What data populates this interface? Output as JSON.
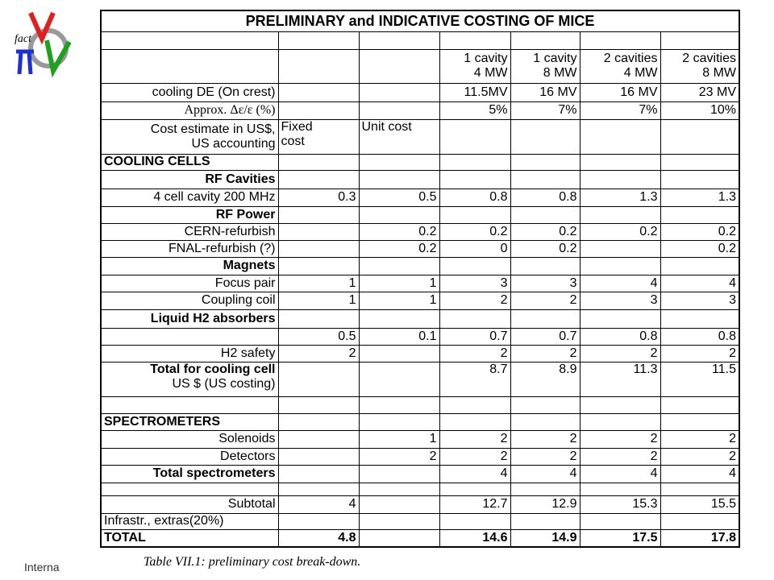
{
  "logo_text": "fact",
  "footer": "Interna",
  "table": {
    "title": "PRELIMINARY and INDICATIVE COSTING OF MICE",
    "caption": "Table VII.1: preliminary cost break-down.",
    "rows": [
      {
        "cells": [
          null,
          null,
          null,
          null,
          null,
          null,
          null
        ]
      },
      {
        "cells": [
          null,
          null,
          null,
          "1 cavity\n4 MW",
          "1 cavity\n8 MW",
          "2 cavities\n4 MW",
          "2 cavities\n8 MW"
        ]
      },
      {
        "cells": [
          "cooling DE (On crest)",
          null,
          null,
          "11.5MV",
          "16 MV",
          "16 MV",
          "23 MV"
        ]
      },
      {
        "cells": [
          "Approx. Δε/ε (%)",
          null,
          null,
          "5%",
          "7%",
          "7%",
          "10%"
        ]
      },
      {
        "cells": [
          "Cost estimate in US$,\nUS accounting",
          "Fixed\ncost",
          "Unit cost",
          null,
          null,
          null,
          null
        ]
      },
      {
        "cells": [
          "COOLING CELLS",
          null,
          null,
          null,
          null,
          null,
          null
        ]
      },
      {
        "cells": [
          "RF Cavities",
          null,
          null,
          null,
          null,
          null,
          null
        ]
      },
      {
        "cells": [
          "4 cell cavity 200 MHz",
          0.3,
          0.5,
          0.8,
          0.8,
          1.3,
          1.3
        ]
      },
      {
        "cells": [
          "RF Power",
          null,
          null,
          null,
          null,
          null,
          null
        ]
      },
      {
        "cells": [
          "CERN-refurbish",
          null,
          0.2,
          0.2,
          0.2,
          0.2,
          0.2
        ]
      },
      {
        "cells": [
          "FNAL-refurbish (?)",
          null,
          0.2,
          0,
          0.2,
          null,
          0.2
        ]
      },
      {
        "cells": [
          "Magnets",
          null,
          null,
          null,
          null,
          null,
          null
        ]
      },
      {
        "cells": [
          "Focus pair",
          1,
          1,
          3,
          3,
          4,
          4
        ]
      },
      {
        "cells": [
          "Coupling  coil",
          1,
          1,
          2,
          2,
          3,
          3
        ]
      },
      {
        "cells": [
          "Liquid H2 absorbers",
          null,
          null,
          null,
          null,
          null,
          null
        ]
      },
      {
        "cells": [
          null,
          0.5,
          0.1,
          0.7,
          0.7,
          0.8,
          0.8
        ]
      },
      {
        "cells": [
          "H2 safety",
          2,
          null,
          2,
          2,
          2,
          2
        ]
      },
      {
        "cells": [
          "Total for cooling cell",
          null,
          null,
          8.7,
          8.9,
          11.3,
          11.5
        ],
        "note": "US $ (US costing)"
      },
      {
        "cells": [
          null,
          null,
          null,
          null,
          null,
          null,
          null
        ]
      },
      {
        "cells": [
          "SPECTROMETERS",
          null,
          null,
          null,
          null,
          null,
          null
        ]
      },
      {
        "cells": [
          "Solenoids",
          null,
          1,
          2,
          2,
          2,
          2
        ]
      },
      {
        "cells": [
          "Detectors",
          null,
          2,
          2,
          2,
          2,
          2
        ]
      },
      {
        "cells": [
          "Total spectrometers",
          null,
          null,
          4,
          4,
          4,
          4
        ]
      },
      {
        "cells": [
          null,
          null,
          null,
          null,
          null,
          null,
          null
        ]
      },
      {
        "cells": [
          "Subtotal",
          4,
          null,
          12.7,
          12.9,
          15.3,
          15.5
        ]
      },
      {
        "cells": [
          "Infrastr., extras(20%)",
          null,
          null,
          null,
          null,
          null,
          null
        ]
      },
      {
        "cells": [
          "TOTAL",
          4.8,
          null,
          14.6,
          14.9,
          17.5,
          17.8
        ]
      }
    ]
  }
}
